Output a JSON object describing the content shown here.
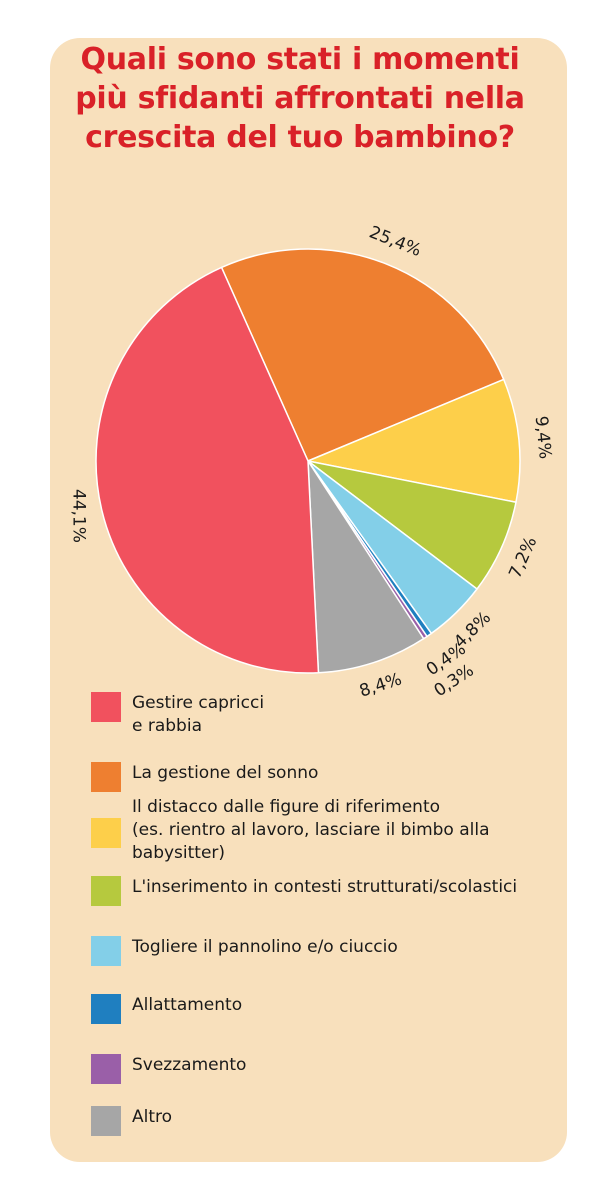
{
  "title_lines": [
    "Quali sono stati i momenti",
    "più sfidanti affrontati nella",
    "crescita del tuo bambino?"
  ],
  "chart_data": {
    "type": "pie",
    "title": "Quali sono stati i momenti più sfidanti affrontati nella crescita del tuo bambino?",
    "start": "top, clockwise",
    "slices": [
      {
        "label": "La gestione del sonno",
        "value": 25.4,
        "display": "25,4%",
        "color": "#ee7f30"
      },
      {
        "label": "Il distacco dalle figure di riferimento (es. rientro al lavoro, lasciare il bimbo alla babysitter)",
        "value": 9.4,
        "display": "9,4%",
        "color": "#fdcf4a"
      },
      {
        "label": "L'inserimento in contesti strutturati/scolastici",
        "value": 7.2,
        "display": "7,2%",
        "color": "#b6c93e"
      },
      {
        "label": "Togliere il pannolino e/o ciuccio",
        "value": 4.8,
        "display": "4,8%",
        "color": "#83cfe8"
      },
      {
        "label": "Allattamento",
        "value": 0.4,
        "display": "0,4%",
        "color": "#1f7fc0"
      },
      {
        "label": "Svezzamento",
        "value": 0.3,
        "display": "0,3%",
        "color": "#9a5fa8"
      },
      {
        "label": "Altro",
        "value": 8.4,
        "display": "8,4%",
        "color": "#a6a6a6"
      },
      {
        "label": "Gestire capricci e rabbia",
        "value": 44.1,
        "display": "44,1%",
        "color": "#f1515e"
      }
    ]
  },
  "legend": [
    {
      "lines": [
        "Gestire capricci",
        "e rabbia"
      ],
      "color": "#f1515e"
    },
    {
      "lines": [
        "La gestione del sonno"
      ],
      "color": "#ee7f30"
    },
    {
      "lines": [
        "Il distacco dalle figure di riferimento",
        "(es. rientro al lavoro, lasciare il bimbo alla",
        "babysitter)"
      ],
      "color": "#fdcf4a"
    },
    {
      "lines": [
        "L'inserimento in contesti strutturati/scolastici"
      ],
      "color": "#b6c93e"
    },
    {
      "lines": [
        "Togliere il pannolino e/o ciuccio"
      ],
      "color": "#83cfe8"
    },
    {
      "lines": [
        "Allattamento"
      ],
      "color": "#1f7fc0"
    },
    {
      "lines": [
        "Svezzamento"
      ],
      "color": "#9a5fa8"
    },
    {
      "lines": [
        "Altro"
      ],
      "color": "#a6a6a6"
    }
  ]
}
